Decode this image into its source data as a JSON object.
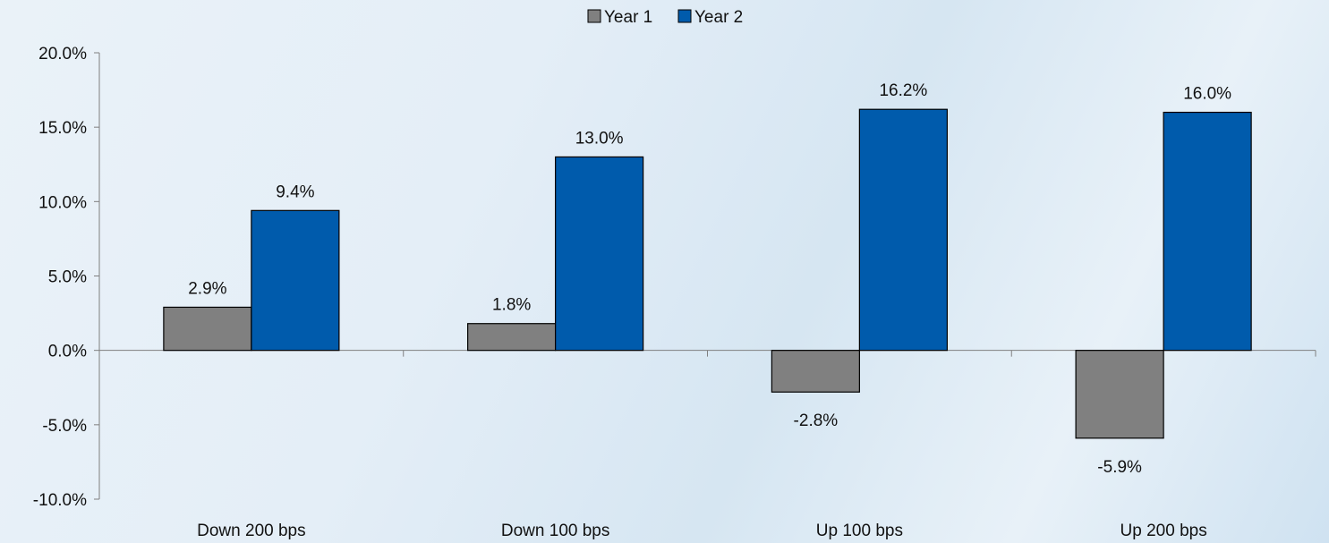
{
  "chart_data": {
    "type": "bar",
    "categories": [
      "Down 200 bps",
      "Down 100 bps",
      "Up 100 bps",
      "Up 200 bps"
    ],
    "series": [
      {
        "name": "Year 1",
        "values": [
          2.9,
          1.8,
          -2.8,
          -5.9
        ],
        "labels": [
          "2.9%",
          "1.8%",
          "-2.8%",
          "-5.9%"
        ],
        "color": "#808080"
      },
      {
        "name": "Year 2",
        "values": [
          9.4,
          13.0,
          16.2,
          16.0
        ],
        "labels": [
          "9.4%",
          "13.0%",
          "16.2%",
          "16.0%"
        ],
        "color": "#005bac"
      }
    ],
    "yticks": [
      20,
      15,
      10,
      5,
      0,
      -5,
      -10
    ],
    "ytick_labels": [
      "20.0%",
      "15.0%",
      "10.0%",
      "5.0%",
      "0.0%",
      "-5.0%",
      "-10.0%"
    ],
    "ylim": [
      -10,
      20
    ],
    "grid": false,
    "legend": "top-center"
  }
}
